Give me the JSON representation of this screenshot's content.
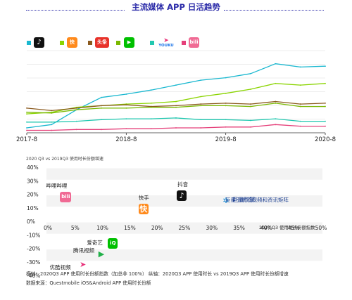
{
  "title": "主流媒体 APP 日活趋势",
  "legend": {
    "douyin": {
      "color": "#1ab8d0",
      "icon": "douyin-icon",
      "icon_bg": "#111111",
      "glyph": "♪"
    },
    "kuaishou": {
      "color": "#8ad400",
      "icon": "kuaishou-icon",
      "icon_bg": "#ff8a1c",
      "glyph": "快"
    },
    "toutiao": {
      "color": "#8b5a1e",
      "icon": "toutiao-icon",
      "icon_bg": "#e8322a",
      "text": "头条"
    },
    "iqiyi": {
      "color": "#7ab800",
      "icon": "iqiyi-icon",
      "icon_bg": "#00c000",
      "glyph": "▶"
    },
    "youku": {
      "color": "#22c8b0",
      "icon": "youku-icon",
      "icon_bg": "#e8327a",
      "text": "YOUKU"
    },
    "bilibili": {
      "color": "#e5407a",
      "icon": "bilibili-icon",
      "icon_bg": "#f06a94",
      "glyph": "bili"
    }
  },
  "chart_data": [
    {
      "type": "line",
      "x_ticks": [
        "2017-8",
        "2018-8",
        "2019-8",
        "2020-8"
      ],
      "x_range": [
        "2017-8",
        "2020-8"
      ],
      "grid": true,
      "legend_position": "top-left",
      "series": [
        {
          "key": "douyin",
          "x": [
            "2017-8",
            "2017-11",
            "2018-2",
            "2018-5",
            "2018-8",
            "2018-11",
            "2019-2",
            "2019-5",
            "2019-8",
            "2019-11",
            "2020-2",
            "2020-5",
            "2020-8"
          ],
          "y": [
            6,
            10,
            28,
            43,
            47,
            52,
            58,
            64,
            67,
            72,
            84,
            80,
            81
          ]
        },
        {
          "key": "kuaishou",
          "x": [
            "2017-8",
            "2017-11",
            "2018-2",
            "2018-5",
            "2018-8",
            "2018-11",
            "2019-2",
            "2019-5",
            "2019-8",
            "2019-11",
            "2020-2",
            "2020-5",
            "2020-8"
          ],
          "y": [
            23,
            25,
            31,
            33,
            35,
            36,
            38,
            44,
            48,
            53,
            60,
            58,
            60
          ]
        },
        {
          "key": "toutiao",
          "x": [
            "2017-8",
            "2017-11",
            "2018-2",
            "2018-5",
            "2018-8",
            "2018-11",
            "2019-2",
            "2019-5",
            "2019-8",
            "2019-11",
            "2020-2",
            "2020-5",
            "2020-8"
          ],
          "y": [
            30,
            27,
            30,
            33,
            34,
            32,
            33,
            35,
            36,
            35,
            38,
            35,
            36
          ]
        },
        {
          "key": "iqiyi",
          "x": [
            "2017-8",
            "2017-11",
            "2018-2",
            "2018-5",
            "2018-8",
            "2018-11",
            "2019-2",
            "2019-5",
            "2019-8",
            "2019-11",
            "2020-2",
            "2020-5",
            "2020-8"
          ],
          "y": [
            25,
            24,
            28,
            30,
            30,
            31,
            31,
            33,
            33,
            32,
            36,
            32,
            32
          ]
        },
        {
          "key": "youku",
          "x": [
            "2017-8",
            "2017-11",
            "2018-2",
            "2018-5",
            "2018-8",
            "2018-11",
            "2019-2",
            "2019-5",
            "2019-8",
            "2019-11",
            "2020-2",
            "2020-5",
            "2020-8"
          ],
          "y": [
            13,
            13,
            14,
            16,
            17,
            17,
            18,
            16,
            16,
            15,
            17,
            14,
            14
          ]
        },
        {
          "key": "bilibili",
          "x": [
            "2017-8",
            "2017-11",
            "2018-2",
            "2018-5",
            "2018-8",
            "2018-11",
            "2019-2",
            "2019-5",
            "2019-8",
            "2019-11",
            "2020-2",
            "2020-5",
            "2020-8"
          ],
          "y": [
            3,
            3,
            4,
            4,
            5,
            5,
            6,
            6,
            7,
            7,
            10,
            8,
            8
          ]
        }
      ]
    },
    {
      "type": "scatter",
      "subtitle": "2020 Q3 vs 2019Q3 使用时长份额增速",
      "x_label": "2020 Q3 使用时长份额指数",
      "x_ticks": [
        "0%",
        "5%",
        "10%",
        "15%",
        "20%",
        "25%",
        "30%",
        "35%",
        "40%",
        "45%",
        "50%"
      ],
      "y_ticks": [
        "40%",
        "30%",
        "20%",
        "10%",
        "0%",
        "-10%",
        "-20%",
        "-30%",
        "-40%"
      ],
      "xlim": [
        0,
        50
      ],
      "ylim": [
        -40,
        40
      ],
      "points": [
        {
          "label": "哔哩哔哩",
          "x": 2.5,
          "y": 21,
          "icon": "bilibili-icon"
        },
        {
          "label": "快手",
          "x": 17.5,
          "y": 13,
          "icon": "kuaishou-icon"
        },
        {
          "label": "抖音",
          "x": 24.5,
          "y": 22,
          "icon": "douyin-icon"
        },
        {
          "label": "巨量引擎",
          "x": 33.5,
          "y": 16,
          "icon": "juliang-icon"
        },
        {
          "label": "爱奇艺",
          "x": 11,
          "y": -16,
          "icon": "iqiyi-icon"
        },
        {
          "label": "腾讯视频",
          "x": 8.5,
          "y": -24,
          "icon": "tencent-video-icon"
        },
        {
          "label": "优酷视频",
          "x": 5.5,
          "y": -32,
          "icon": "youku-icon"
        }
      ],
      "annotation": "巨量引擎短视频和资讯矩阵"
    }
  ],
  "footnotes": [
    "横轴：2020Q3 APP 使用时长份额指数（加总非 100%）    纵轴：2020Q3 APP 使用时长 vs 2019Q3 APP 使用时长份额增速",
    "数据来源：Questmobile iOS&Android APP 使用时长份额"
  ]
}
